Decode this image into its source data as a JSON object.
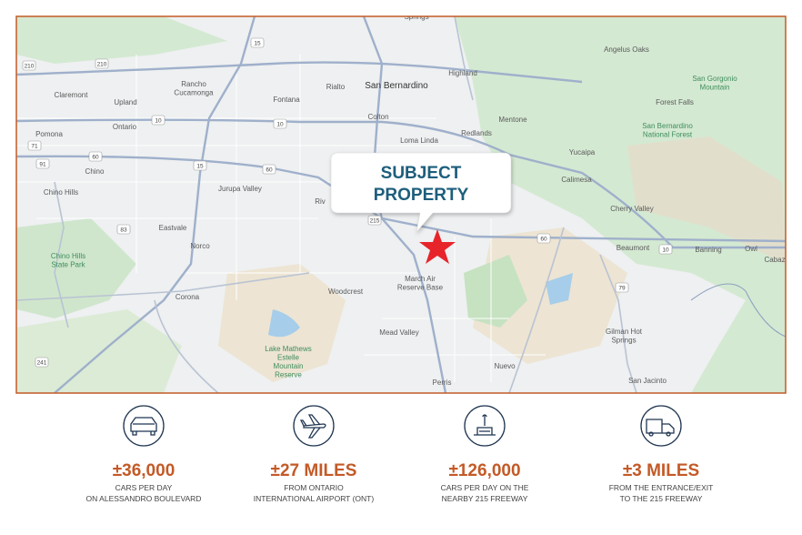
{
  "callout": "SUBJECT PROPERTY",
  "map_labels": [
    [
      "Springs"
    ],
    [
      "Highland"
    ],
    [
      "San Bernardino"
    ],
    [
      "Rialto"
    ],
    [
      "Fontana"
    ],
    [
      "Rancho",
      "Cucamonga"
    ],
    [
      "Claremont"
    ],
    [
      "Upland"
    ],
    [
      "Ontario"
    ],
    [
      "Pomona"
    ],
    [
      "Chino"
    ],
    [
      "Chino Hills"
    ],
    [
      "Colton"
    ],
    [
      "Loma Linda"
    ],
    [
      "Redlands"
    ],
    [
      "Mentone"
    ],
    [
      "Yucaipa"
    ],
    [
      "Calimesa"
    ],
    [
      "Jurupa Valley"
    ],
    [
      "Riv"
    ],
    [
      "Eastvale"
    ],
    [
      "Norco"
    ],
    [
      "Chino Hills",
      "State Park"
    ],
    [
      "Corona"
    ],
    [
      "Woodcrest"
    ],
    [
      "March Air",
      "Reserve Base"
    ],
    [
      "Mead Valley"
    ],
    [
      "Lake Mathews",
      "Estelle",
      "Mountain",
      "Reserve"
    ],
    [
      "Perris"
    ],
    [
      "Nuevo"
    ],
    [
      "Cherry Valley"
    ],
    [
      "Beaumont"
    ],
    [
      "Banning"
    ],
    [
      "Owl"
    ],
    [
      "Cabaz"
    ],
    [
      "Gilman Hot",
      "Springs"
    ],
    [
      "San Jacinto"
    ],
    [
      "Angelus Oaks"
    ],
    [
      "San Gorgonio",
      "Mountain"
    ],
    [
      "Forest Falls"
    ],
    [
      "San Bernardino",
      "National Forest"
    ]
  ],
  "shields": [
    "15",
    "210",
    "210",
    "10",
    "10",
    "10",
    "60",
    "60",
    "60",
    "215",
    "71",
    "91",
    "83",
    "241",
    "79",
    "15"
  ],
  "stats": [
    {
      "value": "±36,000",
      "lines": [
        "CARS PER DAY",
        "ON ALESSANDRO BOULEVARD"
      ]
    },
    {
      "value": "±27 MILES",
      "lines": [
        "FROM ONTARIO",
        "INTERNATIONAL AIRPORT (ONT)"
      ]
    },
    {
      "value": "±126,000",
      "lines": [
        "CARS PER DAY ON THE",
        "NEARBY 215 FREEWAY"
      ]
    },
    {
      "value": "±3 MILES",
      "lines": [
        "FROM THE ENTRANCE/EXIT",
        "TO THE 215 FREEWAY"
      ]
    }
  ]
}
